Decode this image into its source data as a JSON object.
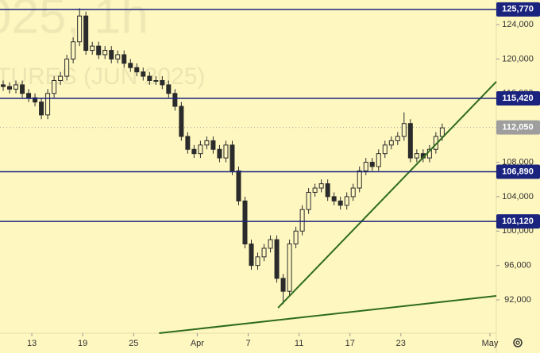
{
  "chart_data": {
    "type": "candlestick",
    "watermark": [
      "025, 1h",
      "TURES (JUN 2025)"
    ],
    "xlim": [
      0,
      78
    ],
    "xticks": [
      {
        "value": 5,
        "label": "13"
      },
      {
        "value": 13,
        "label": "19"
      },
      {
        "value": 21,
        "label": "25"
      },
      {
        "value": 31,
        "label": "Apr"
      },
      {
        "value": 39,
        "label": "7"
      },
      {
        "value": 47,
        "label": "11"
      },
      {
        "value": 55,
        "label": "17"
      },
      {
        "value": 63,
        "label": "23"
      },
      {
        "value": 77,
        "label": "May"
      }
    ],
    "ylim": [
      88130,
      126860
    ],
    "yticks": [
      {
        "value": 92000,
        "label": "92,000"
      },
      {
        "value": 96000,
        "label": "96,000"
      },
      {
        "value": 100000,
        "label": "100,000"
      },
      {
        "value": 104000,
        "label": "104,000"
      },
      {
        "value": 108000,
        "label": "108,000"
      },
      {
        "value": 112000,
        "label": "112,000"
      },
      {
        "value": 116000,
        "label": "116,000"
      },
      {
        "value": 120000,
        "label": "120,000"
      },
      {
        "value": 124000,
        "label": "124,000"
      }
    ],
    "grid": false,
    "candle_color": "#2b2b2b",
    "candles": {
      "open": [
        117000,
        116800,
        116500,
        117000,
        116000,
        115500,
        115000,
        113500,
        116000,
        117500,
        118000,
        120000,
        122000,
        125000,
        121000,
        121500,
        120500,
        121000,
        120000,
        120500,
        119500,
        119000,
        118500,
        118000,
        117500,
        117500,
        117000,
        116000,
        114500,
        111000,
        109500,
        109000,
        110000,
        110500,
        109500,
        108500,
        110000,
        107000,
        103500,
        98500,
        96000,
        97000,
        98000,
        99000,
        94500,
        93000,
        98500,
        100000,
        102500,
        104500,
        105000,
        105500,
        104000,
        103500,
        103000,
        104000,
        105000,
        107000,
        108000,
        107500,
        109000,
        110000,
        110500,
        111000,
        112500,
        108500,
        109000,
        108500,
        109500,
        111000
      ],
      "high": [
        117500,
        117300,
        117500,
        117500,
        116500,
        116000,
        115500,
        116500,
        118000,
        118500,
        120500,
        122500,
        125900,
        125500,
        122000,
        122000,
        121500,
        121500,
        121000,
        121000,
        120000,
        119500,
        119000,
        118500,
        118000,
        118000,
        117500,
        116500,
        115000,
        111500,
        110000,
        110500,
        111000,
        111000,
        110000,
        110500,
        110500,
        107500,
        104000,
        99000,
        97500,
        98500,
        99500,
        99500,
        95000,
        99000,
        100500,
        103000,
        105000,
        105500,
        106000,
        106000,
        104500,
        104000,
        104500,
        105500,
        107500,
        108500,
        108500,
        109500,
        110500,
        111000,
        111500,
        113800,
        113000,
        109500,
        109500,
        110000,
        111500,
        112500
      ],
      "low": [
        116300,
        116000,
        116000,
        115500,
        115000,
        114500,
        113000,
        113000,
        115500,
        117000,
        117500,
        119500,
        121500,
        120500,
        120500,
        120000,
        120000,
        119500,
        119500,
        119000,
        118500,
        118000,
        117500,
        117000,
        117000,
        116500,
        115500,
        114000,
        110500,
        109000,
        108500,
        108500,
        109500,
        109000,
        108000,
        108000,
        106500,
        103000,
        98000,
        95500,
        95500,
        96500,
        97500,
        94000,
        91500,
        92500,
        98000,
        99500,
        102000,
        104000,
        104500,
        103500,
        103000,
        102500,
        102500,
        103500,
        104500,
        106500,
        107000,
        107000,
        108500,
        109500,
        110000,
        110500,
        108000,
        108000,
        108000,
        108000,
        109000,
        110500
      ],
      "close": [
        116800,
        116500,
        117000,
        116000,
        115500,
        115000,
        113500,
        116000,
        117500,
        118000,
        120000,
        122000,
        125000,
        121000,
        121500,
        120500,
        121000,
        120000,
        120500,
        119500,
        119000,
        118500,
        118000,
        117500,
        117500,
        117000,
        116000,
        114500,
        111000,
        109500,
        109000,
        110000,
        110500,
        109500,
        108500,
        110000,
        107000,
        103500,
        98500,
        96000,
        97000,
        98000,
        99000,
        94500,
        93000,
        98500,
        100000,
        102500,
        104500,
        105000,
        105500,
        104000,
        103500,
        103000,
        104000,
        105000,
        107000,
        108000,
        107500,
        109000,
        110000,
        110500,
        111000,
        112500,
        108500,
        109000,
        108500,
        109500,
        111000,
        112000
      ]
    },
    "levels": [
      {
        "value": 125770,
        "label": "125,770"
      },
      {
        "value": 115420,
        "label": "115,420"
      },
      {
        "value": 106890,
        "label": "106,890"
      },
      {
        "value": 101120,
        "label": "101,120"
      }
    ],
    "level_color": "#1a237e",
    "last_price": {
      "value": 112050,
      "label": "112,050"
    },
    "trendlines": [
      {
        "x": [
          43.7,
          78
        ],
        "y": [
          91080,
          117364
        ]
      },
      {
        "x": [
          25,
          78
        ],
        "y": [
          88130,
          92461
        ]
      }
    ],
    "trendline_color": "#2e6b1f"
  }
}
